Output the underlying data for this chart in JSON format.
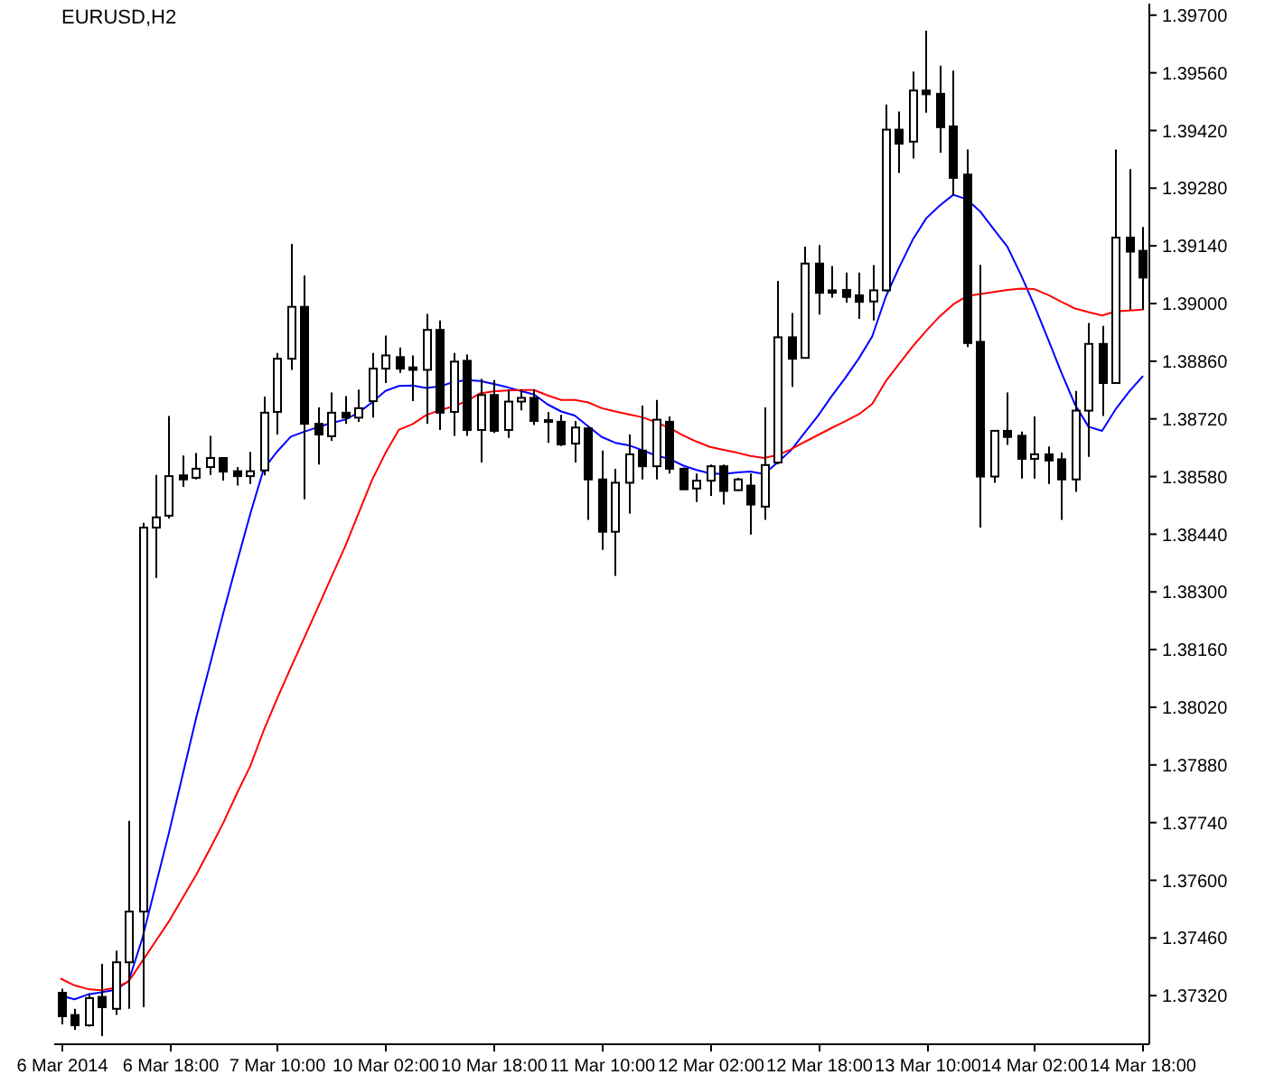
{
  "chart_data": {
    "type": "candlestick",
    "title": "EURUSD,H2",
    "color": "#000000",
    "marker": "none",
    "categories": [
      "6 Mar 2014",
      null,
      null,
      null,
      null,
      null,
      null,
      null,
      "6 Mar 18:00",
      null,
      null,
      null,
      null,
      null,
      null,
      null,
      "7 Mar 10:00",
      null,
      null,
      null,
      null,
      null,
      null,
      null,
      "10 Mar 02:00",
      null,
      null,
      null,
      null,
      null,
      null,
      null,
      "10 Mar 18:00",
      null,
      null,
      null,
      null,
      null,
      null,
      null,
      "11 Mar 10:00",
      null,
      null,
      null,
      null,
      null,
      null,
      null,
      "12 Mar 02:00",
      null,
      null,
      null,
      null,
      null,
      null,
      null,
      "12 Mar 18:00",
      null,
      null,
      null,
      null,
      null,
      null,
      null,
      "13 Mar 10:00",
      null,
      null,
      null,
      null,
      null,
      null,
      null,
      "14 Mar 02:00",
      null,
      null,
      null,
      null,
      null,
      null,
      null,
      "14 Mar 18:00"
    ],
    "ohlc": [
      [
        1.37327,
        1.37337,
        1.3725,
        1.3727
      ],
      [
        1.37273,
        1.37288,
        1.37237,
        1.37248
      ],
      [
        1.37248,
        1.37324,
        1.37245,
        1.37314
      ],
      [
        1.37317,
        1.37397,
        1.37222,
        1.37292
      ],
      [
        1.37288,
        1.37429,
        1.37273,
        1.37401
      ],
      [
        1.37401,
        1.37744,
        1.37288,
        1.37524
      ],
      [
        1.37524,
        1.38468,
        1.37292,
        1.38456
      ],
      [
        1.38456,
        1.38584,
        1.38334,
        1.38481
      ],
      [
        1.38485,
        1.38727,
        1.38478,
        1.38581
      ],
      [
        1.38583,
        1.38631,
        1.38555,
        1.38573
      ],
      [
        1.38577,
        1.38637,
        1.38573,
        1.38599
      ],
      [
        1.38603,
        1.38679,
        1.38584,
        1.38625
      ],
      [
        1.38625,
        1.38627,
        1.3857,
        1.38592
      ],
      [
        1.38593,
        1.38603,
        1.38558,
        1.38581
      ],
      [
        1.38581,
        1.3864,
        1.38562,
        1.38593
      ],
      [
        1.38595,
        1.38774,
        1.38583,
        1.38735
      ],
      [
        1.38737,
        1.3888,
        1.38682,
        1.38866
      ],
      [
        1.38866,
        1.39145,
        1.38839,
        1.38992
      ],
      [
        1.38992,
        1.39068,
        1.38525,
        1.38708
      ],
      [
        1.38708,
        1.38748,
        1.38609,
        1.38682
      ],
      [
        1.38678,
        1.38784,
        1.38667,
        1.38735
      ],
      [
        1.38735,
        1.38775,
        1.38708,
        1.38723
      ],
      [
        1.38723,
        1.38791,
        1.38713,
        1.38746
      ],
      [
        1.38763,
        1.3888,
        1.38723,
        1.38842
      ],
      [
        1.38842,
        1.38922,
        1.38807,
        1.38874
      ],
      [
        1.3887,
        1.38893,
        1.38832,
        1.38842
      ],
      [
        1.38845,
        1.38874,
        1.38763,
        1.38839
      ],
      [
        1.38839,
        1.38975,
        1.38708,
        1.38936
      ],
      [
        1.38936,
        1.38959,
        1.38693,
        1.38735
      ],
      [
        1.38737,
        1.3888,
        1.38679,
        1.38859
      ],
      [
        1.38861,
        1.38876,
        1.38679,
        1.38693
      ],
      [
        1.38693,
        1.38817,
        1.38614,
        1.38778
      ],
      [
        1.38778,
        1.38814,
        1.38686,
        1.38691
      ],
      [
        1.38693,
        1.38791,
        1.38674,
        1.38762
      ],
      [
        1.38762,
        1.38791,
        1.38741,
        1.38771
      ],
      [
        1.38771,
        1.38791,
        1.38705,
        1.38715
      ],
      [
        1.38717,
        1.38737,
        1.38662,
        1.38713
      ],
      [
        1.38713,
        1.3873,
        1.38654,
        1.38658
      ],
      [
        1.3866,
        1.38715,
        1.38614,
        1.38699
      ],
      [
        1.38697,
        1.387,
        1.38475,
        1.38573
      ],
      [
        1.38573,
        1.38643,
        1.38402,
        1.38446
      ],
      [
        1.38446,
        1.38599,
        1.38339,
        1.38565
      ],
      [
        1.38565,
        1.38682,
        1.3849,
        1.38634
      ],
      [
        1.38643,
        1.38752,
        1.38573,
        1.38605
      ],
      [
        1.38605,
        1.38766,
        1.38573,
        1.38718
      ],
      [
        1.38713,
        1.38726,
        1.38587,
        1.38599
      ],
      [
        1.38599,
        1.38602,
        1.38547,
        1.38549
      ],
      [
        1.38551,
        1.38587,
        1.38518,
        1.3857
      ],
      [
        1.3857,
        1.38609,
        1.38533,
        1.38605
      ],
      [
        1.38605,
        1.38609,
        1.38512,
        1.38545
      ],
      [
        1.38547,
        1.38577,
        1.38545,
        1.38573
      ],
      [
        1.38558,
        1.38587,
        1.38439,
        1.38512
      ],
      [
        1.38507,
        1.38748,
        1.38475,
        1.38608
      ],
      [
        1.38614,
        1.39055,
        1.3861,
        1.38918
      ],
      [
        1.38918,
        1.38977,
        1.38798,
        1.38866
      ],
      [
        1.38868,
        1.39138,
        1.38866,
        1.39097
      ],
      [
        1.39097,
        1.39142,
        1.38973,
        1.39026
      ],
      [
        1.39032,
        1.39091,
        1.39014,
        1.39026
      ],
      [
        1.39033,
        1.39075,
        1.39002,
        1.39016
      ],
      [
        1.3902,
        1.39075,
        1.38963,
        1.39004
      ],
      [
        1.39005,
        1.39093,
        1.38959,
        1.39032
      ],
      [
        1.39032,
        1.39483,
        1.39029,
        1.39422
      ],
      [
        1.39422,
        1.39466,
        1.39317,
        1.39388
      ],
      [
        1.39393,
        1.39563,
        1.39352,
        1.39517
      ],
      [
        1.39517,
        1.39662,
        1.39463,
        1.39508
      ],
      [
        1.39509,
        1.39577,
        1.39366,
        1.39428
      ],
      [
        1.3943,
        1.39565,
        1.39262,
        1.39305
      ],
      [
        1.39313,
        1.39374,
        1.38894,
        1.38904
      ],
      [
        1.38907,
        1.39094,
        1.38456,
        1.3858
      ],
      [
        1.3858,
        1.38693,
        1.38565,
        1.38691
      ],
      [
        1.38691,
        1.38784,
        1.38657,
        1.38676
      ],
      [
        1.38679,
        1.38689,
        1.38575,
        1.38623
      ],
      [
        1.38623,
        1.38726,
        1.38575,
        1.38634
      ],
      [
        1.38634,
        1.38653,
        1.38562,
        1.38619
      ],
      [
        1.38622,
        1.38638,
        1.38475,
        1.38573
      ],
      [
        1.38573,
        1.38788,
        1.38543,
        1.3874
      ],
      [
        1.3874,
        1.38953,
        1.38628,
        1.38902
      ],
      [
        1.38902,
        1.38946,
        1.38727,
        1.38807
      ],
      [
        1.38807,
        1.39374,
        1.38807,
        1.3916
      ],
      [
        1.3916,
        1.39326,
        1.38985,
        1.39126
      ],
      [
        1.39128,
        1.39186,
        1.38985,
        1.39063
      ]
    ],
    "series": [
      {
        "type": "line",
        "color": "#0000ff",
        "values": [
          1.3732,
          1.37311,
          1.37323,
          1.37328,
          1.37334,
          1.37355,
          1.37457,
          1.37587,
          1.37717,
          1.37856,
          1.37994,
          1.38121,
          1.38248,
          1.3837,
          1.38489,
          1.38599,
          1.38641,
          1.38677,
          1.38689,
          1.387,
          1.3871,
          1.38718,
          1.38735,
          1.3876,
          1.38788,
          1.388,
          1.38801,
          1.38795,
          1.38799,
          1.38809,
          1.38814,
          1.38812,
          1.38805,
          1.38797,
          1.38788,
          1.38779,
          1.38755,
          1.38738,
          1.38728,
          1.38702,
          1.38676,
          1.38662,
          1.38656,
          1.38644,
          1.38631,
          1.38623,
          1.38607,
          1.38596,
          1.38588,
          1.38586,
          1.3859,
          1.38592,
          1.38586,
          1.38614,
          1.38644,
          1.38686,
          1.38728,
          1.38775,
          1.38819,
          1.38866,
          1.3892,
          1.39016,
          1.39088,
          1.39155,
          1.39207,
          1.39238,
          1.39264,
          1.39253,
          1.39223,
          1.3918,
          1.39138,
          1.3907,
          1.38995,
          1.38914,
          1.38832,
          1.38755,
          1.38701,
          1.38691,
          1.38743,
          1.38786,
          1.38823
        ]
      },
      {
        "type": "line",
        "color": "#ff0000",
        "values": [
          1.37361,
          1.37345,
          1.37336,
          1.37333,
          1.37339,
          1.37354,
          1.37403,
          1.37452,
          1.37501,
          1.37557,
          1.37613,
          1.37675,
          1.37739,
          1.3781,
          1.37877,
          1.37964,
          1.38042,
          1.38116,
          1.38189,
          1.38262,
          1.38336,
          1.38409,
          1.3849,
          1.38571,
          1.38637,
          1.38694,
          1.38707,
          1.38729,
          1.38741,
          1.3875,
          1.38763,
          1.38782,
          1.38787,
          1.38789,
          1.3879,
          1.3879,
          1.38777,
          1.38766,
          1.38766,
          1.3876,
          1.38746,
          1.38738,
          1.38731,
          1.38724,
          1.38712,
          1.38698,
          1.3868,
          1.38665,
          1.38652,
          1.38645,
          1.38638,
          1.3863,
          1.38625,
          1.38632,
          1.38646,
          1.38664,
          1.38681,
          1.38698,
          1.38714,
          1.38731,
          1.38756,
          1.38811,
          1.38854,
          1.38896,
          1.38934,
          1.38969,
          1.38998,
          1.39018,
          1.39023,
          1.39028,
          1.39033,
          1.39036,
          1.39035,
          1.39021,
          1.39004,
          1.38988,
          1.38979,
          1.38971,
          1.38981,
          1.38983,
          1.38985
        ]
      }
    ],
    "ylim": [
      1.37202,
      1.39728
    ],
    "yticks": [
      {
        "value": 1.3732,
        "label": "1.37320"
      },
      {
        "value": 1.3746,
        "label": "1.37460"
      },
      {
        "value": 1.376,
        "label": "1.37600"
      },
      {
        "value": 1.3774,
        "label": "1.37740"
      },
      {
        "value": 1.3788,
        "label": "1.37880"
      },
      {
        "value": 1.3802,
        "label": "1.38020"
      },
      {
        "value": 1.3816,
        "label": "1.38160"
      },
      {
        "value": 1.383,
        "label": "1.38300"
      },
      {
        "value": 1.3844,
        "label": "1.38440"
      },
      {
        "value": 1.3858,
        "label": "1.38580"
      },
      {
        "value": 1.3872,
        "label": "1.38720"
      },
      {
        "value": 1.3886,
        "label": "1.38860"
      },
      {
        "value": 1.39,
        "label": "1.39000"
      },
      {
        "value": 1.3914,
        "label": "1.39140"
      },
      {
        "value": 1.3928,
        "label": "1.39280"
      },
      {
        "value": 1.3942,
        "label": "1.39420"
      },
      {
        "value": 1.3956,
        "label": "1.39560"
      },
      {
        "value": 1.397,
        "label": "1.39700"
      }
    ]
  }
}
